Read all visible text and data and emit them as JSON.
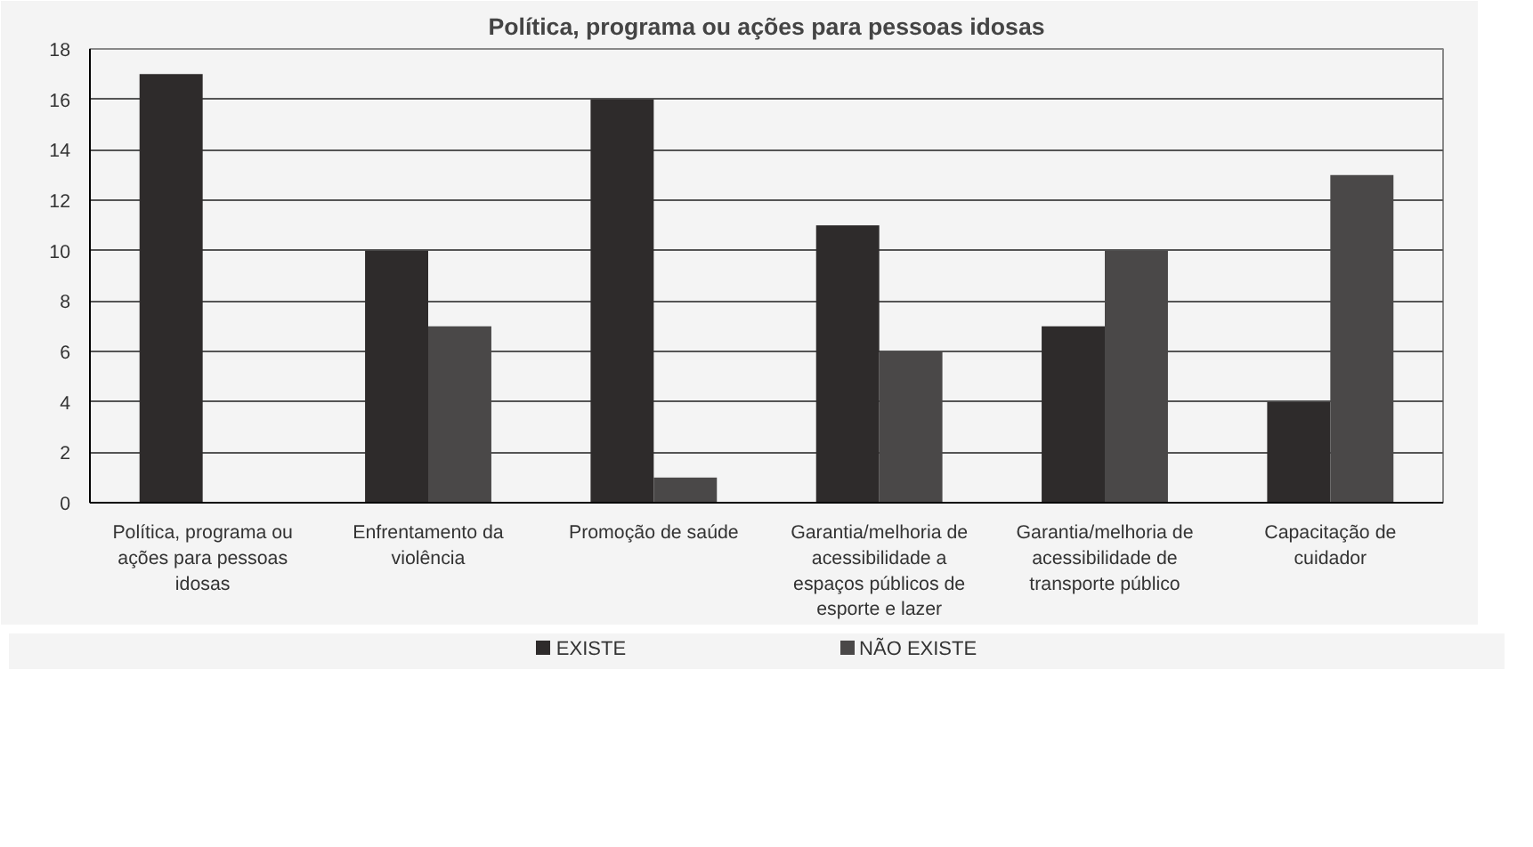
{
  "chart_data": {
    "type": "bar",
    "title": "Política, programa ou ações para pessoas idosas",
    "categories": [
      "Política, programa ou ações para pessoas idosas",
      "Enfrentamento da violência",
      "Promoção de saúde",
      "Garantia/melhoria de acessibilidade a espaços públicos de esporte e lazer",
      "Garantia/melhoria de acessibilidade de transporte público",
      "Capacitação de cuidador"
    ],
    "series": [
      {
        "name": "EXISTE",
        "color": "#2e2b2b",
        "values": [
          17,
          10,
          16,
          11,
          7,
          4
        ]
      },
      {
        "name": "NÃO EXISTE",
        "color": "#4a4848",
        "values": [
          0,
          7,
          1,
          6,
          10,
          13
        ]
      }
    ],
    "ylim": [
      0,
      18
    ],
    "yticks": [
      0,
      2,
      4,
      6,
      8,
      10,
      12,
      14,
      16,
      18
    ],
    "grid": "y",
    "legend": "bottom"
  }
}
